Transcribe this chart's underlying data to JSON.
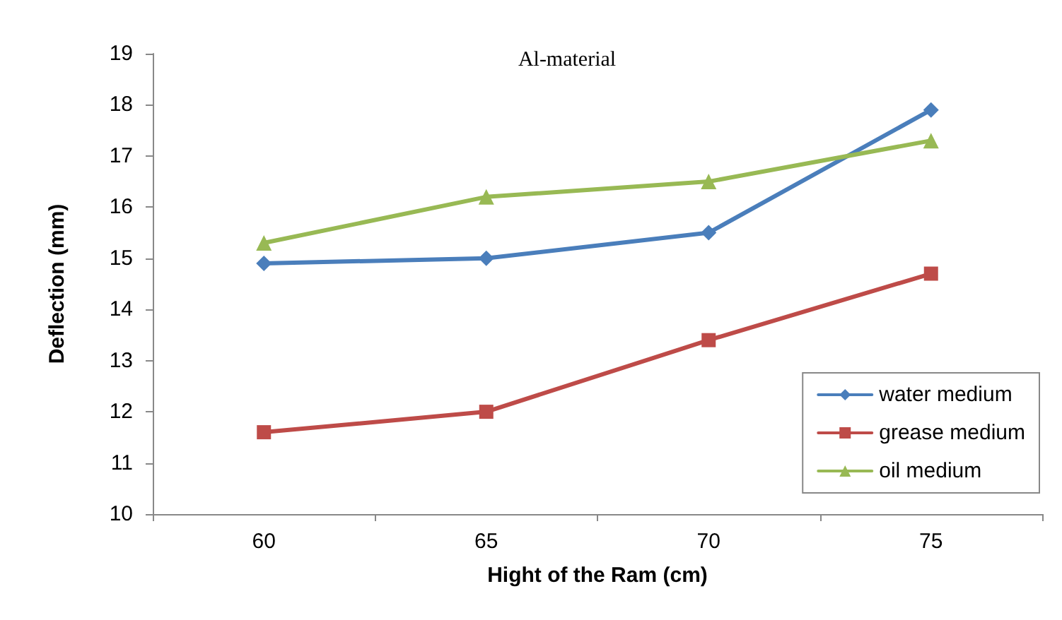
{
  "chart_data": {
    "type": "line",
    "title": "Al-material",
    "xlabel": "Hight of the Ram (cm)",
    "ylabel": "Deflection (mm)",
    "categories": [
      "60",
      "65",
      "70",
      "75"
    ],
    "series": [
      {
        "name": "water medium",
        "color": "#4a7ebb",
        "values": [
          14.9,
          15.0,
          15.5,
          17.9
        ],
        "marker": "diamond"
      },
      {
        "name": "grease medium",
        "color": "#be4b48",
        "values": [
          11.6,
          12.0,
          13.4,
          14.7
        ],
        "marker": "square"
      },
      {
        "name": "oil medium",
        "color": "#98b954",
        "values": [
          15.3,
          16.2,
          16.5,
          17.3
        ],
        "marker": "triangle"
      }
    ],
    "ylim": [
      10,
      19
    ],
    "yticks": [
      10,
      11,
      12,
      13,
      14,
      15,
      16,
      17,
      18,
      19
    ],
    "grid": false,
    "legend": "bottom right",
    "line_style": "solid"
  }
}
